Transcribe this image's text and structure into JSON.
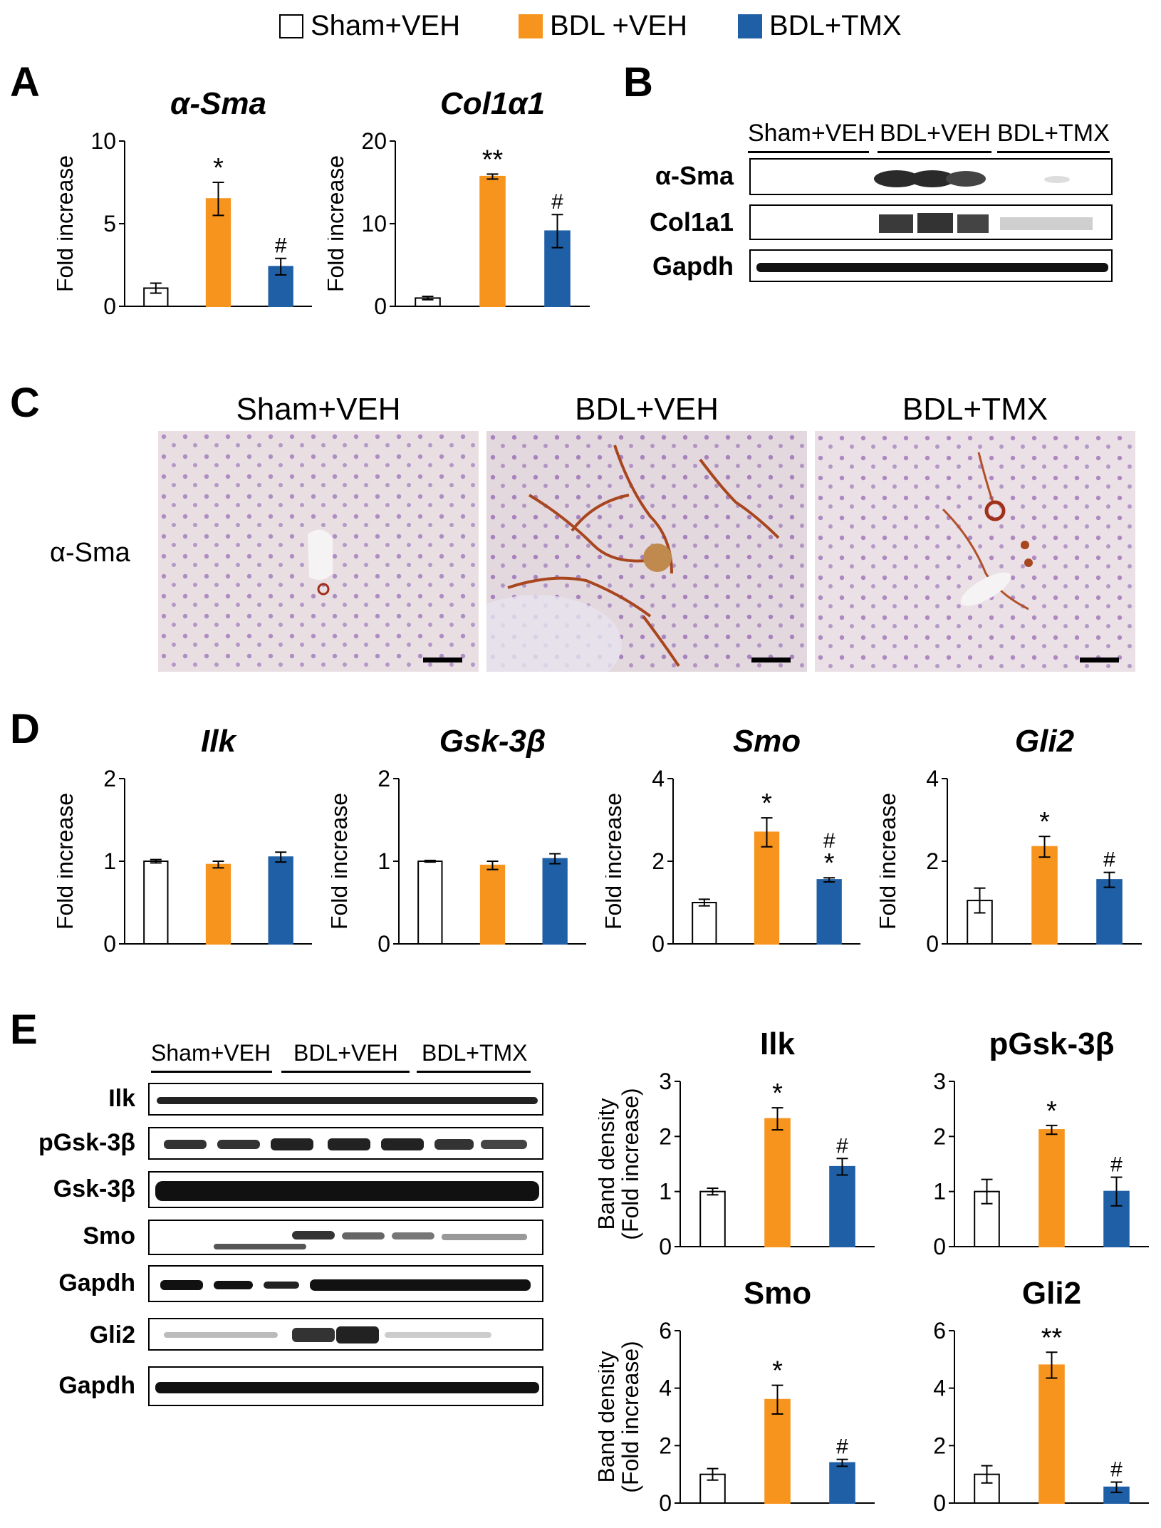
{
  "legend": [
    {
      "label": "Sham+VEH",
      "color": "#ffffff"
    },
    {
      "label": "BDL +VEH",
      "color": "#f7941d"
    },
    {
      "label": "BDL+TMX",
      "color": "#1f5fa6"
    }
  ],
  "panels": {
    "A": "A",
    "B": "B",
    "C": "C",
    "D": "D",
    "E": "E"
  },
  "colors": {
    "sham": "#ffffff",
    "bdl": "#f7941d",
    "tmx": "#1f5fa6"
  },
  "blot_b": {
    "lanes": [
      "Sham+VEH",
      "BDL+VEH",
      "BDL+TMX"
    ],
    "rows": [
      "α-Sma",
      "Col1a1",
      "Gapdh"
    ]
  },
  "micrographs": {
    "row_label": "α-Sma",
    "titles": [
      "Sham+VEH",
      "BDL+VEH",
      "BDL+TMX"
    ]
  },
  "blot_e": {
    "lanes": [
      "Sham+VEH",
      "BDL+VEH",
      "BDL+TMX"
    ],
    "rows": [
      "Ilk",
      "pGsk-3β",
      "Gsk-3β",
      "Smo",
      "Gapdh",
      "Gli2",
      "Gapdh"
    ]
  },
  "chart_data": [
    {
      "id": "A1",
      "type": "bar",
      "title": "α-Sma",
      "ylabel": "Fold increase",
      "ylim": [
        0,
        10
      ],
      "yticks": [
        0,
        5,
        10
      ],
      "categories": [
        "Sham+VEH",
        "BDL+VEH",
        "BDL+TMX"
      ],
      "values": [
        1.1,
        6.5,
        2.4
      ],
      "errors": [
        0.3,
        1.0,
        0.5
      ],
      "annotations": [
        "",
        "*",
        "#"
      ]
    },
    {
      "id": "A2",
      "type": "bar",
      "title": "Col1α1",
      "ylabel": "Fold increase",
      "ylim": [
        0,
        20
      ],
      "yticks": [
        0,
        10,
        20
      ],
      "categories": [
        "Sham+VEH",
        "BDL+VEH",
        "BDL+TMX"
      ],
      "values": [
        1.0,
        15.7,
        9.1
      ],
      "errors": [
        0.2,
        0.3,
        2.0
      ],
      "annotations": [
        "",
        "**",
        "#"
      ]
    },
    {
      "id": "D1",
      "type": "bar",
      "title": "Ilk",
      "ylabel": "Fold increase",
      "ylim": [
        0,
        2
      ],
      "yticks": [
        0,
        1,
        2
      ],
      "categories": [
        "Sham+VEH",
        "BDL+VEH",
        "BDL+TMX"
      ],
      "values": [
        1.0,
        0.96,
        1.05
      ],
      "errors": [
        0.02,
        0.04,
        0.06
      ],
      "annotations": [
        "",
        "",
        ""
      ]
    },
    {
      "id": "D2",
      "type": "bar",
      "title": "Gsk-3β",
      "ylabel": "Fold increase",
      "ylim": [
        0,
        2
      ],
      "yticks": [
        0,
        1,
        2
      ],
      "categories": [
        "Sham+VEH",
        "BDL+VEH",
        "BDL+TMX"
      ],
      "values": [
        1.0,
        0.95,
        1.03
      ],
      "errors": [
        0.01,
        0.05,
        0.06
      ],
      "annotations": [
        "",
        "",
        ""
      ]
    },
    {
      "id": "D3",
      "type": "bar",
      "title": "Smo",
      "ylabel": "Fold increase",
      "ylim": [
        0,
        4
      ],
      "yticks": [
        0,
        2,
        4
      ],
      "categories": [
        "Sham+VEH",
        "BDL+VEH",
        "BDL+TMX"
      ],
      "values": [
        1.0,
        2.7,
        1.55
      ],
      "errors": [
        0.08,
        0.35,
        0.05
      ],
      "annotations": [
        "",
        "*",
        "#\n*"
      ]
    },
    {
      "id": "D4",
      "type": "bar",
      "title": "Gli2",
      "ylabel": "Fold increase",
      "ylim": [
        0,
        4
      ],
      "yticks": [
        0,
        2,
        4
      ],
      "categories": [
        "Sham+VEH",
        "BDL+VEH",
        "BDL+TMX"
      ],
      "values": [
        1.05,
        2.35,
        1.55
      ],
      "errors": [
        0.3,
        0.25,
        0.18
      ],
      "annotations": [
        "",
        "*",
        "#"
      ]
    },
    {
      "id": "E1",
      "type": "bar",
      "title": "Ilk",
      "ylabel": "Band density\n(Fold increase)",
      "ylim": [
        0,
        3
      ],
      "yticks": [
        0,
        1,
        2,
        3
      ],
      "categories": [
        "Sham+VEH",
        "BDL+VEH",
        "BDL+TMX"
      ],
      "values": [
        1.0,
        2.32,
        1.45
      ],
      "errors": [
        0.06,
        0.2,
        0.15
      ],
      "annotations": [
        "",
        "*",
        "#"
      ]
    },
    {
      "id": "E2",
      "type": "bar",
      "title": "pGsk-3β",
      "ylabel": "",
      "ylim": [
        0,
        3
      ],
      "yticks": [
        0,
        1,
        2,
        3
      ],
      "categories": [
        "Sham+VEH",
        "BDL+VEH",
        "BDL+TMX"
      ],
      "values": [
        1.0,
        2.12,
        1.0
      ],
      "errors": [
        0.22,
        0.08,
        0.26
      ],
      "annotations": [
        "",
        "*",
        "#"
      ]
    },
    {
      "id": "E3",
      "type": "bar",
      "title": "Smo",
      "ylabel": "Band density\n(Fold increase)",
      "ylim": [
        0,
        6
      ],
      "yticks": [
        0,
        2,
        4,
        6
      ],
      "categories": [
        "Sham+VEH",
        "BDL+VEH",
        "BDL+TMX"
      ],
      "values": [
        1.0,
        3.6,
        1.4
      ],
      "errors": [
        0.2,
        0.5,
        0.12
      ],
      "annotations": [
        "",
        "*",
        "#"
      ]
    },
    {
      "id": "E4",
      "type": "bar",
      "title": "Gli2",
      "ylabel": "",
      "ylim": [
        0,
        6
      ],
      "yticks": [
        0,
        2,
        4,
        6
      ],
      "categories": [
        "Sham+VEH",
        "BDL+VEH",
        "BDL+TMX"
      ],
      "values": [
        1.0,
        4.8,
        0.55
      ],
      "errors": [
        0.3,
        0.45,
        0.18
      ],
      "annotations": [
        "",
        "**",
        "#"
      ]
    }
  ]
}
